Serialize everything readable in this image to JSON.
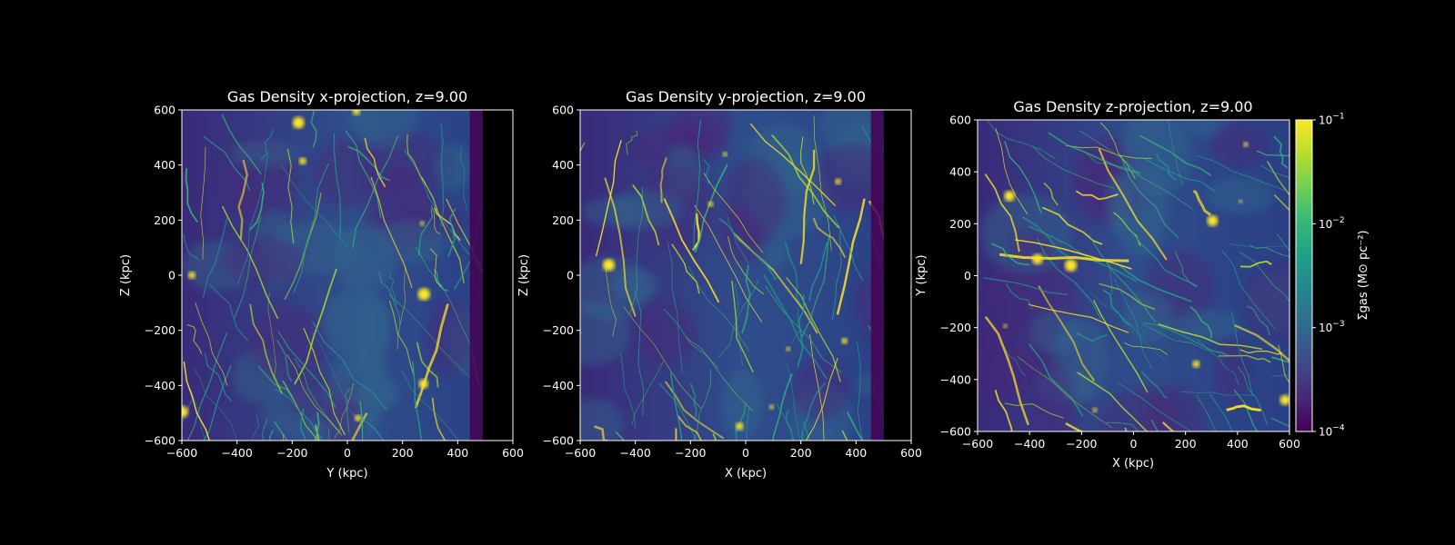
{
  "chart_data": [
    {
      "type": "heatmap",
      "title": "Gas Density x-projection, z=9.00",
      "xlabel": "Y (kpc)",
      "ylabel": "Z (kpc)",
      "xlim": [
        -600,
        600
      ],
      "ylim": [
        -600,
        600
      ],
      "xticks": [
        "−600",
        "−400",
        "−200",
        "0",
        "200",
        "400",
        "600"
      ],
      "yticks": [
        "−600",
        "−400",
        "−200",
        "0",
        "200",
        "400",
        "600"
      ],
      "colormap": "viridis",
      "scale": "log",
      "empty_region_x_from": 490
    },
    {
      "type": "heatmap",
      "title": "Gas Density y-projection, z=9.00",
      "xlabel": "X (kpc)",
      "ylabel": "Z (kpc)",
      "xlim": [
        -600,
        600
      ],
      "ylim": [
        -600,
        600
      ],
      "xticks": [
        "−600",
        "−400",
        "−200",
        "0",
        "200",
        "400",
        "600"
      ],
      "yticks": [
        "−600",
        "−400",
        "−200",
        "0",
        "200",
        "400",
        "600"
      ],
      "colormap": "viridis",
      "scale": "log",
      "empty_region_x_from": 500
    },
    {
      "type": "heatmap",
      "title": "Gas Density z-projection, z=9.00",
      "xlabel": "X (kpc)",
      "ylabel": "Y (kpc)",
      "xlim": [
        -600,
        600
      ],
      "ylim": [
        -600,
        600
      ],
      "xticks": [
        "−600",
        "−400",
        "−200",
        "0",
        "200",
        "400",
        "600"
      ],
      "yticks": [
        "−600",
        "−400",
        "−200",
        "0",
        "200",
        "400",
        "600"
      ],
      "colormap": "viridis",
      "scale": "log",
      "colorbar": {
        "label": "Σgas (M⊙ pc⁻²)",
        "range": [
          0.0001,
          0.1
        ],
        "ticks": [
          {
            "base": "10",
            "exp": "−1"
          },
          {
            "base": "10",
            "exp": "−2"
          },
          {
            "base": "10",
            "exp": "−3"
          },
          {
            "base": "10",
            "exp": "−4"
          }
        ]
      }
    }
  ],
  "colors": {
    "background": "#000000",
    "axes": "#ffffff",
    "empty": "#000000",
    "viridis": [
      "#440154",
      "#482878",
      "#3e4a89",
      "#31688e",
      "#26828e",
      "#1f9e89",
      "#35b779",
      "#6ece58",
      "#b5de2b",
      "#fde725"
    ]
  }
}
